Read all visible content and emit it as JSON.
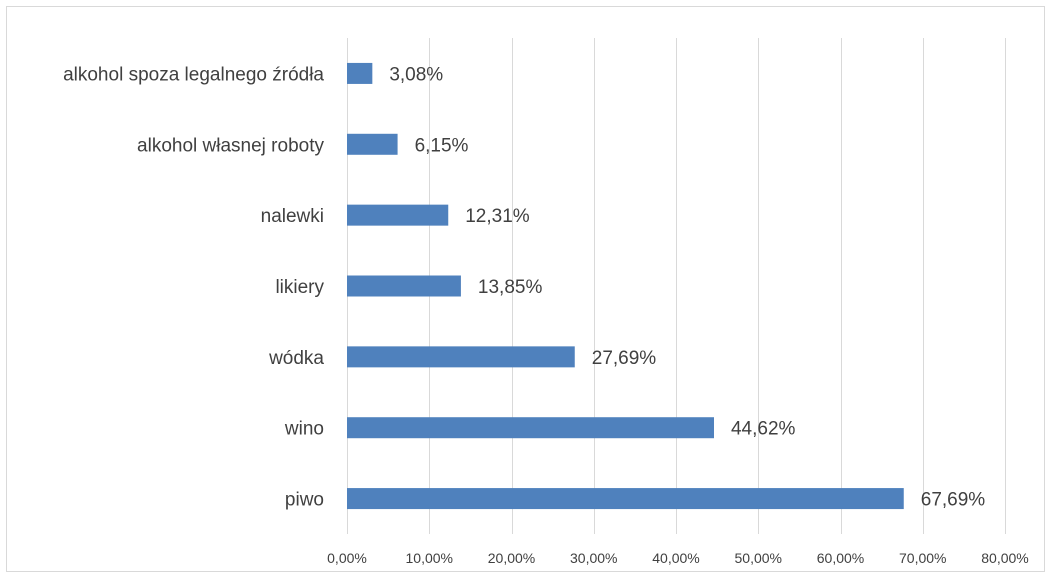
{
  "chart_data": {
    "type": "bar",
    "orientation": "horizontal",
    "title": "",
    "xlabel": "",
    "ylabel": "",
    "categories": [
      "alkohol spoza legalnego źródła",
      "alkohol własnej roboty",
      "nalewki",
      "likiery",
      "wódka",
      "wino",
      "piwo"
    ],
    "values": [
      3.08,
      6.15,
      12.31,
      13.85,
      27.69,
      44.62,
      67.69
    ],
    "value_labels": [
      "3,08%",
      "6,15%",
      "12,31%",
      "13,85%",
      "27,69%",
      "44,62%",
      "67,69%"
    ],
    "xlim": [
      0,
      80
    ],
    "xticks": [
      0,
      10,
      20,
      30,
      40,
      50,
      60,
      70,
      80
    ],
    "xtick_labels": [
      "0,00%",
      "10,00%",
      "20,00%",
      "30,00%",
      "40,00%",
      "50,00%",
      "60,00%",
      "70,00%",
      "80,00%"
    ],
    "grid": "vertical",
    "legend": "none",
    "bar_color": "#4f81bd",
    "grid_color": "#d9d9d9",
    "text_color": "#404040"
  }
}
